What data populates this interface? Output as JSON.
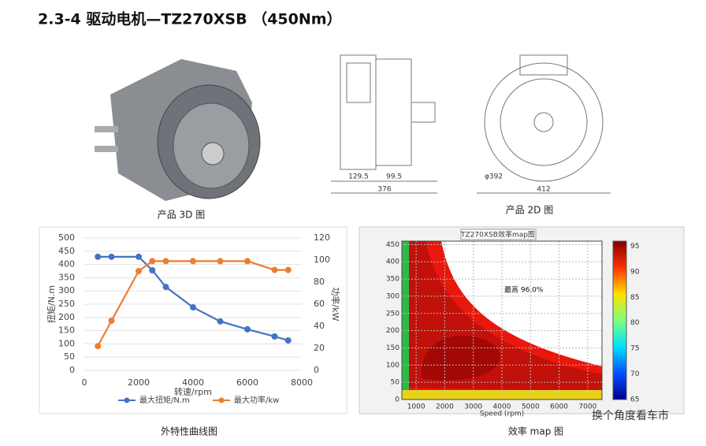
{
  "title": "2.3-4  驱动电机—TZ270XSB （450Nm）",
  "captions": {
    "drawing_3d": "产品 3D 图",
    "drawing_2d": "产品 2D 图",
    "curve": "外特性曲线图",
    "map": "效率 map 图"
  },
  "dimensions": [
    "129.5",
    "99.5",
    "376",
    "412",
    "φ392"
  ],
  "watermark": "换个角度看车市",
  "chart_data": [
    {
      "type": "line",
      "x_label": "转速/rpm",
      "y_label": "扭矩/N.m",
      "y2_label": "功率/kW",
      "x": [
        500,
        1000,
        2000,
        2500,
        3000,
        4000,
        5000,
        6000,
        7000,
        7500
      ],
      "series": [
        {
          "name": "最大扭矩/N.m",
          "color": "#4472c4",
          "values": [
            429,
            429,
            429,
            378,
            315,
            238,
            185,
            155,
            128,
            113
          ]
        },
        {
          "name": "最大功率/kw",
          "color": "#ed7d31",
          "axis": "y2",
          "values": [
            22,
            45,
            90,
            99,
            99,
            99,
            99,
            99,
            91,
            91
          ]
        }
      ],
      "xlim": [
        0,
        8000
      ],
      "xticks": [
        0,
        2000,
        4000,
        6000,
        8000
      ],
      "ylim": [
        0,
        500
      ],
      "yticks": [
        0,
        50,
        100,
        150,
        200,
        250,
        300,
        350,
        400,
        450,
        500
      ],
      "y2lim": [
        0,
        120
      ],
      "y2ticks": [
        0,
        20,
        40,
        60,
        80,
        100,
        120
      ],
      "grid": true,
      "legend": "bottom"
    },
    {
      "type": "contour",
      "title": "TZ270XSB效率map图",
      "x_label": "Speed (rpm)",
      "annotation": "最高 96.0%",
      "xlim": [
        500,
        7500
      ],
      "xticks": [
        1000,
        2000,
        3000,
        4000,
        5000,
        6000,
        7000
      ],
      "ylim": [
        0,
        460
      ],
      "yticks": [
        0,
        50,
        100,
        150,
        200,
        250,
        300,
        350,
        400,
        450
      ],
      "clim": [
        65,
        96
      ],
      "cticks": [
        65,
        70,
        75,
        80,
        85,
        90,
        95
      ]
    }
  ]
}
